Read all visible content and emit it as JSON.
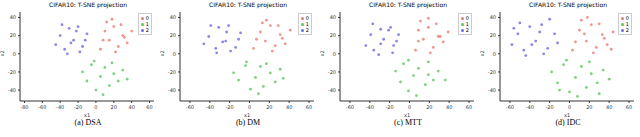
{
  "chart_data": [
    {
      "type": "scatter",
      "title": "CIFAR10: T-SNE projection",
      "caption": "(a) DSA",
      "x_label": "x1",
      "y_label": "x2",
      "xlim": [
        -85,
        65
      ],
      "xticks": [
        -80,
        -60,
        -40,
        -20,
        0,
        20,
        40,
        60
      ],
      "ylim": [
        -52,
        46
      ],
      "yticks": [
        -40,
        -20,
        0,
        20,
        40
      ],
      "legend": "upper right",
      "series": [
        {
          "name": "0",
          "color": "#e87a72",
          "x": [
            5,
            10,
            15,
            20,
            25,
            30,
            35,
            40,
            12,
            22,
            32,
            8,
            18,
            28
          ],
          "y": [
            5,
            25,
            15,
            30,
            8,
            20,
            12,
            25,
            35,
            2,
            18,
            15,
            38,
            32
          ]
        },
        {
          "name": "1",
          "color": "#5cc65c",
          "x": [
            -15,
            -10,
            -5,
            0,
            5,
            10,
            15,
            20,
            25,
            30,
            35,
            -2,
            8,
            18
          ],
          "y": [
            -20,
            -30,
            -12,
            -40,
            -25,
            -15,
            -35,
            -22,
            -30,
            -18,
            -28,
            -8,
            -45,
            -10
          ]
        },
        {
          "name": "2",
          "color": "#6a6ae0",
          "x": [
            -45,
            -40,
            -35,
            -30,
            -25,
            -20,
            -15,
            -10,
            -38,
            -28,
            -18,
            -32,
            -22,
            -12
          ],
          "y": [
            10,
            20,
            5,
            28,
            15,
            30,
            8,
            22,
            32,
            12,
            2,
            0,
            25,
            15
          ]
        }
      ]
    },
    {
      "type": "scatter",
      "title": "CIFAR10: T-SNE projection",
      "caption": "(b) DM",
      "x_label": "x1",
      "y_label": "x2",
      "xlim": [
        -70,
        65
      ],
      "xticks": [
        -60,
        -40,
        -20,
        0,
        20,
        40,
        60
      ],
      "ylim": [
        -52,
        46
      ],
      "yticks": [
        -40,
        -20,
        0,
        20,
        40
      ],
      "legend": "upper right",
      "series": [
        {
          "name": "0",
          "color": "#e87a72",
          "x": [
            4,
            11,
            16,
            21,
            26,
            31,
            36,
            41,
            13,
            23,
            33,
            7,
            17,
            29
          ],
          "y": [
            6,
            24,
            14,
            31,
            9,
            21,
            11,
            26,
            34,
            3,
            17,
            16,
            37,
            31
          ]
        },
        {
          "name": "1",
          "color": "#5cc65c",
          "x": [
            -16,
            -11,
            -4,
            1,
            6,
            11,
            14,
            21,
            26,
            31,
            34,
            -3,
            9,
            17
          ],
          "y": [
            -21,
            -29,
            -13,
            -39,
            -26,
            -14,
            -36,
            -21,
            -31,
            -17,
            -27,
            -9,
            -44,
            -11
          ]
        },
        {
          "name": "2",
          "color": "#6a6ae0",
          "x": [
            -46,
            -41,
            -34,
            -31,
            -24,
            -21,
            -14,
            -9,
            -39,
            -27,
            -19,
            -33,
            -23,
            -11
          ],
          "y": [
            11,
            19,
            6,
            29,
            14,
            31,
            7,
            23,
            31,
            13,
            3,
            1,
            24,
            16
          ]
        }
      ]
    },
    {
      "type": "scatter",
      "title": "CIFAR10: T-SNE projection",
      "caption": "(c) MTT",
      "x_label": "x1",
      "y_label": "x2",
      "xlim": [
        -70,
        65
      ],
      "xticks": [
        -60,
        -40,
        -20,
        0,
        20,
        40,
        60
      ],
      "ylim": [
        -52,
        46
      ],
      "yticks": [
        -40,
        -20,
        0,
        20,
        40
      ],
      "legend": "upper right",
      "series": [
        {
          "name": "0",
          "color": "#e87a72",
          "x": [
            6,
            9,
            14,
            19,
            24,
            29,
            34,
            39,
            11,
            21,
            31,
            9,
            19,
            27
          ],
          "y": [
            4,
            26,
            16,
            29,
            7,
            19,
            13,
            24,
            36,
            1,
            19,
            14,
            39,
            33
          ]
        },
        {
          "name": "1",
          "color": "#5cc65c",
          "x": [
            -14,
            -9,
            -6,
            -1,
            4,
            9,
            16,
            19,
            24,
            29,
            36,
            -1,
            7,
            19
          ],
          "y": [
            -19,
            -31,
            -11,
            -41,
            -24,
            -16,
            -34,
            -23,
            -29,
            -19,
            -29,
            -7,
            -46,
            -9
          ]
        },
        {
          "name": "2",
          "color": "#6a6ae0",
          "x": [
            -44,
            -39,
            -36,
            -29,
            -26,
            -19,
            -16,
            -11,
            -37,
            -29,
            -17,
            -31,
            -21,
            -13
          ],
          "y": [
            9,
            21,
            4,
            27,
            16,
            29,
            9,
            21,
            33,
            11,
            1,
            -1,
            26,
            14
          ]
        }
      ]
    },
    {
      "type": "scatter",
      "title": "CIFAR10: T-SNE projection",
      "caption": "(d) IDC",
      "x_label": "x1",
      "y_label": "x2",
      "xlim": [
        -70,
        65
      ],
      "xticks": [
        -60,
        -40,
        -20,
        0,
        20,
        40,
        60
      ],
      "ylim": [
        -52,
        46
      ],
      "yticks": [
        -40,
        -20,
        0,
        20,
        40
      ],
      "legend": "upper right",
      "series": [
        {
          "name": "0",
          "color": "#e87a72",
          "x": [
            3,
            10,
            17,
            22,
            27,
            33,
            38,
            44,
            12,
            24,
            35,
            6,
            18,
            30,
            42,
            15
          ],
          "y": [
            4,
            26,
            14,
            32,
            7,
            21,
            10,
            24,
            37,
            1,
            17,
            13,
            40,
            33,
            5,
            22
          ]
        },
        {
          "name": "1",
          "color": "#5cc65c",
          "x": [
            -18,
            -12,
            -6,
            0,
            6,
            12,
            17,
            22,
            28,
            34,
            40,
            -3,
            8,
            20,
            30,
            -10
          ],
          "y": [
            -20,
            -32,
            -12,
            -42,
            -26,
            -14,
            -37,
            -22,
            -32,
            -18,
            -28,
            -7,
            -47,
            -9,
            -44,
            -40
          ]
        },
        {
          "name": "2",
          "color": "#6a6ae0",
          "x": [
            -58,
            -52,
            -46,
            -40,
            -34,
            -28,
            -22,
            -15,
            -50,
            -38,
            -26,
            -44,
            -30,
            -12,
            -56,
            -20
          ],
          "y": [
            10,
            22,
            4,
            30,
            14,
            32,
            6,
            22,
            34,
            10,
            0,
            -2,
            24,
            12,
            28,
            38
          ]
        }
      ]
    }
  ]
}
